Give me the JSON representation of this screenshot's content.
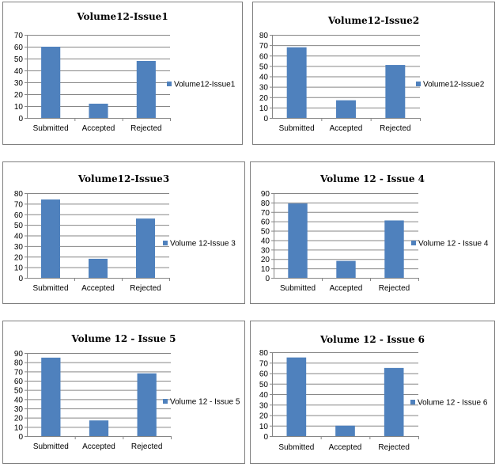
{
  "chart_data": [
    {
      "type": "bar",
      "title": "Volume12-Issue1",
      "categories": [
        "Submitted",
        "Accepted",
        "Rejected"
      ],
      "series": [
        {
          "name": "Volume12-Issue1",
          "values": [
            60,
            12,
            48
          ]
        }
      ],
      "ylim": [
        0,
        70
      ],
      "yticks": [
        0,
        10,
        20,
        30,
        40,
        50,
        60,
        70
      ],
      "grid": true,
      "legend": "right",
      "bar_color": "#4f81bd"
    },
    {
      "type": "bar",
      "title": "Volume12-Issue2",
      "categories": [
        "Submitted",
        "Accepted",
        "Rejected"
      ],
      "series": [
        {
          "name": "Volume12-Issue2",
          "values": [
            68,
            17,
            51
          ]
        }
      ],
      "ylim": [
        0,
        80
      ],
      "yticks": [
        0,
        10,
        20,
        30,
        40,
        50,
        60,
        70,
        80
      ],
      "grid": true,
      "legend": "right",
      "bar_color": "#4f81bd"
    },
    {
      "type": "bar",
      "title": "Volume12-Issue3",
      "categories": [
        "Submitted",
        "Accepted",
        "Rejected"
      ],
      "series": [
        {
          "name": "Volume 12-Issue 3",
          "values": [
            74,
            18,
            56
          ]
        }
      ],
      "ylim": [
        0,
        80
      ],
      "yticks": [
        0,
        10,
        20,
        30,
        40,
        50,
        60,
        70,
        80
      ],
      "grid": true,
      "legend": "right",
      "bar_color": "#4f81bd"
    },
    {
      "type": "bar",
      "title": "Volume 12 - Issue 4",
      "categories": [
        "Submitted",
        "Accepted",
        "Rejected"
      ],
      "series": [
        {
          "name": "Volume 12 - Issue 4",
          "values": [
            79,
            18,
            61
          ]
        }
      ],
      "ylim": [
        0,
        90
      ],
      "yticks": [
        0,
        10,
        20,
        30,
        40,
        50,
        60,
        70,
        80,
        90
      ],
      "grid": true,
      "legend": "right",
      "bar_color": "#4f81bd"
    },
    {
      "type": "bar",
      "title": "Volume 12 - Issue 5",
      "categories": [
        "Submitted",
        "Accepted",
        "Rejected"
      ],
      "series": [
        {
          "name": "Volume 12 - Issue 5",
          "values": [
            85,
            17,
            68
          ]
        }
      ],
      "ylim": [
        0,
        90
      ],
      "yticks": [
        0,
        10,
        20,
        30,
        40,
        50,
        60,
        70,
        80,
        90
      ],
      "grid": true,
      "legend": "right",
      "bar_color": "#4f81bd"
    },
    {
      "type": "bar",
      "title": "Volume 12 - Issue 6",
      "categories": [
        "Submitted",
        "Accepted",
        "Rejected"
      ],
      "series": [
        {
          "name": "Volume 12 - Issue 6",
          "values": [
            75,
            10,
            65
          ]
        }
      ],
      "ylim": [
        0,
        80
      ],
      "yticks": [
        0,
        10,
        20,
        30,
        40,
        50,
        60,
        70,
        80
      ],
      "grid": true,
      "legend": "right",
      "bar_color": "#4f81bd"
    }
  ]
}
